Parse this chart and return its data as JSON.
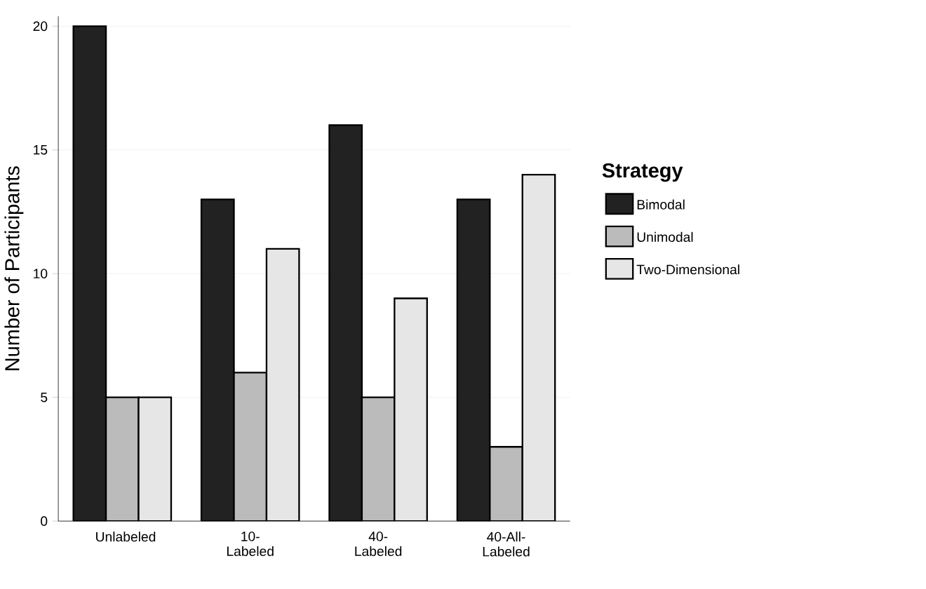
{
  "chart_data": {
    "type": "bar",
    "ylabel": "Number of Participants",
    "legend_title": "Strategy",
    "categories": [
      "Unlabeled",
      "10-Labeled",
      "40-Labeled",
      "40-All-Labeled"
    ],
    "series": [
      {
        "name": "Bimodal",
        "color": "#222222",
        "values": [
          20,
          13,
          16,
          13
        ]
      },
      {
        "name": "Unimodal",
        "color": "#bbbbbb",
        "values": [
          5,
          6,
          5,
          3
        ]
      },
      {
        "name": "Two-Dimensional",
        "color": "#e6e6e6",
        "values": [
          5,
          11,
          9,
          14
        ]
      }
    ],
    "ylim": [
      0,
      20.4
    ],
    "yticks": [
      0,
      5,
      10,
      15,
      20
    ],
    "grid": "y",
    "legend": "right"
  }
}
